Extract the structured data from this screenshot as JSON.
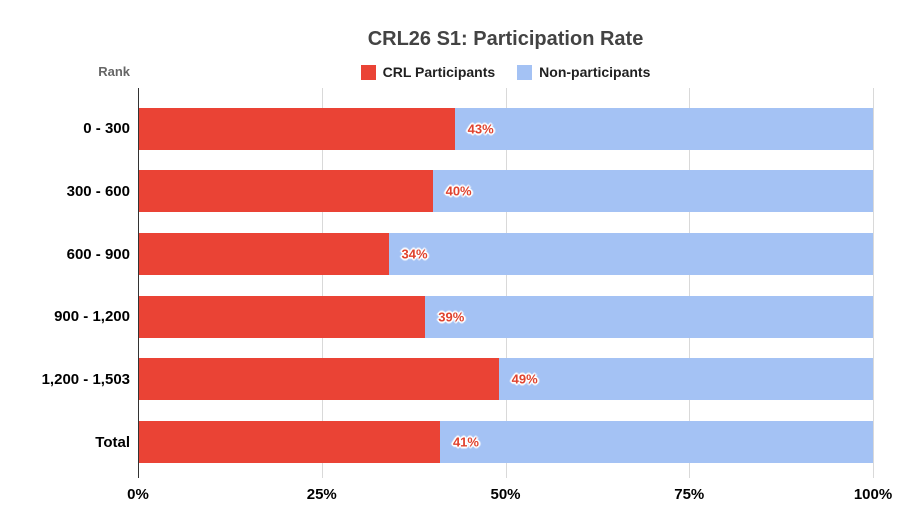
{
  "title": "CRL26 S1: Participation Rate",
  "axis_header": "Rank",
  "colors": {
    "participants": "#EA4335",
    "non_participants": "#A4C2F4",
    "data_label": "#E0432F",
    "gridline": "#D9D9D9",
    "axis_line": "#333333",
    "title_text": "#434343",
    "category_text": "#000000",
    "axis_label_text": "#000000",
    "rank_text": "#666666"
  },
  "chart_data": {
    "type": "bar",
    "orientation": "horizontal",
    "stacked": true,
    "title": "CRL26 S1: Participation Rate",
    "xlabel": "",
    "ylabel": "Rank",
    "categories": [
      "0 - 300",
      "300 - 600",
      "600 - 900",
      "900 - 1,200",
      "1,200 - 1,503",
      "Total"
    ],
    "series": [
      {
        "name": "CRL Participants",
        "color": "#EA4335",
        "values": [
          43,
          40,
          34,
          39,
          49,
          41
        ]
      },
      {
        "name": "Non-participants",
        "color": "#A4C2F4",
        "values": [
          57,
          60,
          66,
          61,
          51,
          59
        ]
      }
    ],
    "data_labels": [
      "43%",
      "40%",
      "34%",
      "39%",
      "49%",
      "41%"
    ],
    "x_ticks": [
      "0%",
      "25%",
      "50%",
      "75%",
      "100%"
    ],
    "xlim": [
      0,
      100
    ],
    "legend_position": "top",
    "grid": "vertical"
  }
}
